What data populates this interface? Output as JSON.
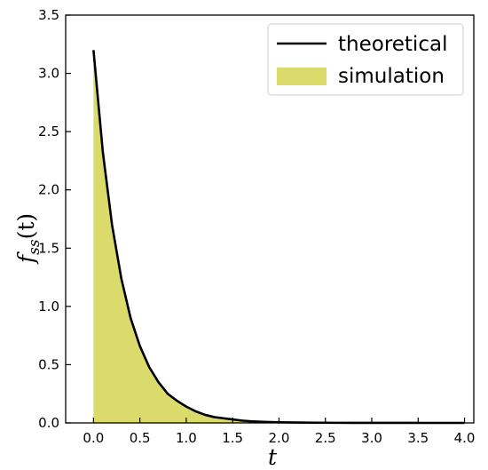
{
  "chart_data": {
    "type": "area",
    "title": "",
    "xlabel": "t",
    "ylabel_main": "f",
    "ylabel_sub": "ss",
    "ylabel_arg": "(t)",
    "xlim": [
      -0.3,
      4.1
    ],
    "ylim": [
      0,
      3.5
    ],
    "xticks": [
      0.0,
      0.5,
      1.0,
      1.5,
      2.0,
      2.5,
      3.0,
      3.5,
      4.0
    ],
    "xtick_labels": [
      "0.0",
      "0.5",
      "1.0",
      "1.5",
      "2.0",
      "2.5",
      "3.0",
      "3.5",
      "4.0"
    ],
    "yticks": [
      0.0,
      0.5,
      1.0,
      1.5,
      2.0,
      2.5,
      3.0,
      3.5
    ],
    "ytick_labels": [
      "0.0",
      "0.5",
      "1.0",
      "1.5",
      "2.0",
      "2.5",
      "3.0",
      "3.5"
    ],
    "grid": false,
    "legend_position": "top-right",
    "series": [
      {
        "name": "theoretical",
        "kind": "line",
        "color": "#000000",
        "x": [
          0.0,
          0.1,
          0.2,
          0.3,
          0.4,
          0.5,
          0.6,
          0.7,
          0.8,
          0.9,
          1.0,
          1.1,
          1.2,
          1.3,
          1.4,
          1.5,
          1.6,
          1.7,
          1.8,
          1.9,
          2.0,
          2.2,
          2.4,
          2.6,
          2.8,
          3.0,
          3.2,
          3.4,
          3.6,
          3.8,
          4.0
        ],
        "y": [
          3.2,
          2.33,
          1.7,
          1.24,
          0.9,
          0.66,
          0.48,
          0.35,
          0.25,
          0.19,
          0.14,
          0.1,
          0.07,
          0.05,
          0.04,
          0.03,
          0.02,
          0.014,
          0.01,
          0.007,
          0.005,
          0.003,
          0.002,
          0.001,
          0.0005,
          0.0003,
          0.0002,
          0.0001,
          0.0,
          0.0,
          0.0
        ]
      },
      {
        "name": "simulation",
        "kind": "area",
        "color": "#dbdb6b",
        "x": [
          0.0,
          0.1,
          0.2,
          0.3,
          0.4,
          0.5,
          0.6,
          0.7,
          0.8,
          0.9,
          1.0,
          1.1,
          1.2,
          1.3,
          1.4,
          1.5,
          1.6,
          1.7,
          1.8,
          1.9,
          2.0,
          2.2,
          2.4,
          2.6,
          2.8,
          3.0,
          3.2,
          3.4,
          3.6,
          3.8,
          4.0
        ],
        "y": [
          3.2,
          2.33,
          1.7,
          1.24,
          0.9,
          0.66,
          0.48,
          0.35,
          0.25,
          0.19,
          0.14,
          0.1,
          0.07,
          0.05,
          0.04,
          0.03,
          0.02,
          0.014,
          0.01,
          0.007,
          0.005,
          0.003,
          0.002,
          0.001,
          0.0005,
          0.0003,
          0.0002,
          0.0001,
          0.0,
          0.0,
          0.0
        ]
      }
    ]
  }
}
